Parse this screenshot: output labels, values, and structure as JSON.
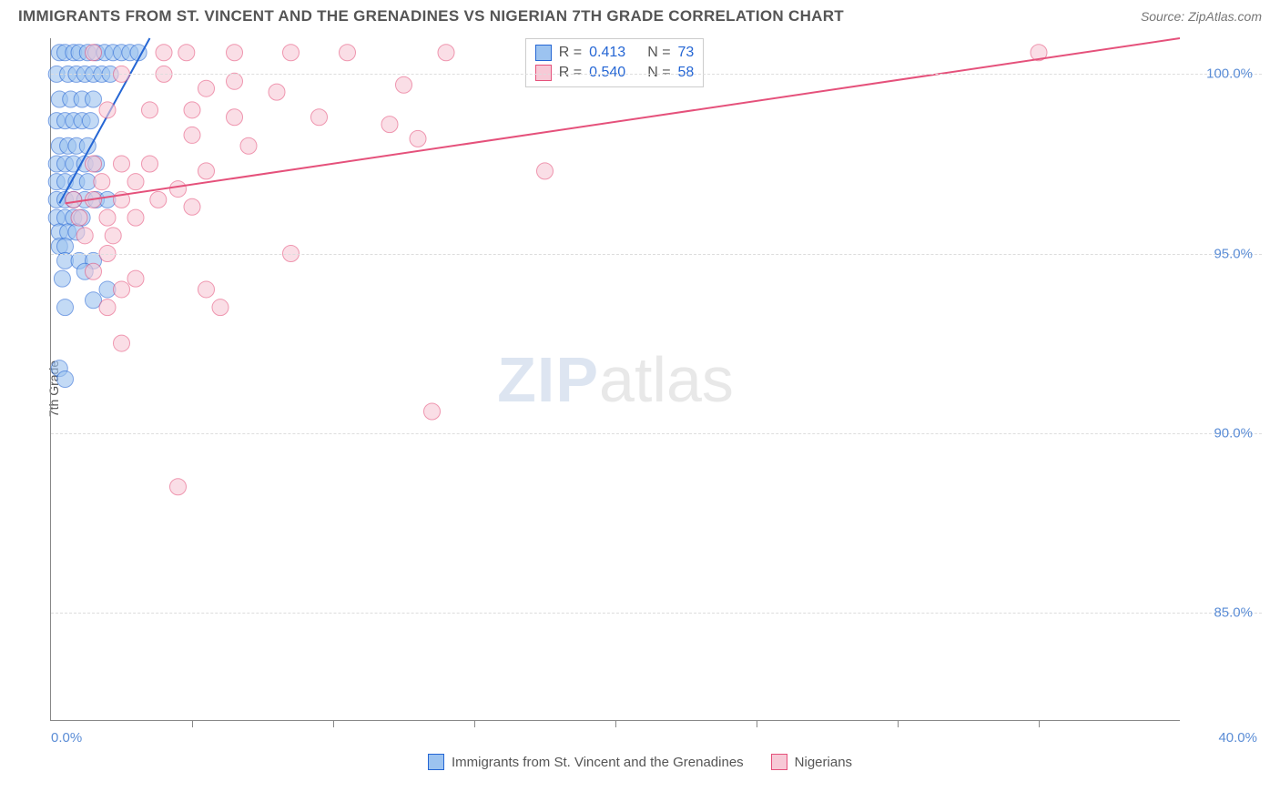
{
  "header": {
    "title": "IMMIGRANTS FROM ST. VINCENT AND THE GRENADINES VS NIGERIAN 7TH GRADE CORRELATION CHART",
    "source": "Source: ZipAtlas.com"
  },
  "chart": {
    "type": "scatter",
    "ylabel": "7th Grade",
    "watermark_zip": "ZIP",
    "watermark_atlas": "atlas",
    "xlim": [
      0,
      40
    ],
    "ylim": [
      82,
      101
    ],
    "xtick_labels": [
      "0.0%",
      "40.0%"
    ],
    "xtick_positions": [
      0,
      40
    ],
    "xtick_minor": [
      5,
      10,
      15,
      20,
      25,
      30,
      35
    ],
    "ytick_labels": [
      "85.0%",
      "90.0%",
      "95.0%",
      "100.0%"
    ],
    "ytick_positions": [
      85,
      90,
      95,
      100
    ],
    "grid_color": "#dddddd",
    "axis_color": "#888888",
    "background_color": "#ffffff",
    "marker_radius": 9,
    "marker_opacity": 0.35,
    "line_width": 2,
    "series": [
      {
        "name": "Immigrants from St. Vincent and the Grenadines",
        "fill": "#9cc3f0",
        "stroke": "#2566d4",
        "r": "0.413",
        "n": "73",
        "trend": {
          "x1": 0.3,
          "y1": 96.4,
          "x2": 3.5,
          "y2": 101
        },
        "points": [
          [
            0.3,
            100.6
          ],
          [
            0.5,
            100.6
          ],
          [
            0.8,
            100.6
          ],
          [
            1.0,
            100.6
          ],
          [
            1.3,
            100.6
          ],
          [
            1.6,
            100.6
          ],
          [
            1.9,
            100.6
          ],
          [
            2.2,
            100.6
          ],
          [
            2.5,
            100.6
          ],
          [
            2.8,
            100.6
          ],
          [
            3.1,
            100.6
          ],
          [
            0.2,
            100.0
          ],
          [
            0.6,
            100.0
          ],
          [
            0.9,
            100.0
          ],
          [
            1.2,
            100.0
          ],
          [
            1.5,
            100.0
          ],
          [
            1.8,
            100.0
          ],
          [
            2.1,
            100.0
          ],
          [
            0.3,
            99.3
          ],
          [
            0.7,
            99.3
          ],
          [
            1.1,
            99.3
          ],
          [
            1.5,
            99.3
          ],
          [
            0.2,
            98.7
          ],
          [
            0.5,
            98.7
          ],
          [
            0.8,
            98.7
          ],
          [
            1.1,
            98.7
          ],
          [
            1.4,
            98.7
          ],
          [
            0.3,
            98.0
          ],
          [
            0.6,
            98.0
          ],
          [
            0.9,
            98.0
          ],
          [
            1.3,
            98.0
          ],
          [
            0.2,
            97.5
          ],
          [
            0.5,
            97.5
          ],
          [
            0.8,
            97.5
          ],
          [
            1.2,
            97.5
          ],
          [
            1.6,
            97.5
          ],
          [
            0.2,
            97.0
          ],
          [
            0.5,
            97.0
          ],
          [
            0.9,
            97.0
          ],
          [
            1.3,
            97.0
          ],
          [
            0.2,
            96.5
          ],
          [
            0.5,
            96.5
          ],
          [
            0.8,
            96.5
          ],
          [
            1.2,
            96.5
          ],
          [
            1.6,
            96.5
          ],
          [
            2.0,
            96.5
          ],
          [
            0.2,
            96.0
          ],
          [
            0.5,
            96.0
          ],
          [
            0.8,
            96.0
          ],
          [
            1.1,
            96.0
          ],
          [
            0.3,
            95.6
          ],
          [
            0.6,
            95.6
          ],
          [
            0.9,
            95.6
          ],
          [
            0.3,
            95.2
          ],
          [
            0.5,
            95.2
          ],
          [
            0.5,
            94.8
          ],
          [
            1.0,
            94.8
          ],
          [
            1.5,
            94.8
          ],
          [
            0.4,
            94.3
          ],
          [
            1.2,
            94.5
          ],
          [
            0.5,
            93.5
          ],
          [
            1.5,
            93.7
          ],
          [
            2.0,
            94.0
          ],
          [
            0.3,
            91.8
          ],
          [
            0.5,
            91.5
          ]
        ]
      },
      {
        "name": "Nigerians",
        "fill": "#f7c9d6",
        "stroke": "#e5517b",
        "r": "0.540",
        "n": "58",
        "trend": {
          "x1": 0.5,
          "y1": 96.4,
          "x2": 40,
          "y2": 101
        },
        "points": [
          [
            1.5,
            100.6
          ],
          [
            4.0,
            100.6
          ],
          [
            4.8,
            100.6
          ],
          [
            6.5,
            100.6
          ],
          [
            8.5,
            100.6
          ],
          [
            10.5,
            100.6
          ],
          [
            14.0,
            100.6
          ],
          [
            35.0,
            100.6
          ],
          [
            2.5,
            100.0
          ],
          [
            4.0,
            100.0
          ],
          [
            5.5,
            99.6
          ],
          [
            6.5,
            99.8
          ],
          [
            8.0,
            99.5
          ],
          [
            12.5,
            99.7
          ],
          [
            2.0,
            99.0
          ],
          [
            3.5,
            99.0
          ],
          [
            5.0,
            99.0
          ],
          [
            6.5,
            98.8
          ],
          [
            9.5,
            98.8
          ],
          [
            12.0,
            98.6
          ],
          [
            5.0,
            98.3
          ],
          [
            7.0,
            98.0
          ],
          [
            13.0,
            98.2
          ],
          [
            1.5,
            97.5
          ],
          [
            2.5,
            97.5
          ],
          [
            3.5,
            97.5
          ],
          [
            5.5,
            97.3
          ],
          [
            1.8,
            97.0
          ],
          [
            3.0,
            97.0
          ],
          [
            4.5,
            96.8
          ],
          [
            0.8,
            96.5
          ],
          [
            1.5,
            96.5
          ],
          [
            2.5,
            96.5
          ],
          [
            3.8,
            96.5
          ],
          [
            5.0,
            96.3
          ],
          [
            1.0,
            96.0
          ],
          [
            2.0,
            96.0
          ],
          [
            3.0,
            96.0
          ],
          [
            1.2,
            95.5
          ],
          [
            2.2,
            95.5
          ],
          [
            2.0,
            95.0
          ],
          [
            8.5,
            95.0
          ],
          [
            1.5,
            94.5
          ],
          [
            3.0,
            94.3
          ],
          [
            2.5,
            94.0
          ],
          [
            5.5,
            94.0
          ],
          [
            2.0,
            93.5
          ],
          [
            6.0,
            93.5
          ],
          [
            2.5,
            92.5
          ],
          [
            13.5,
            90.6
          ],
          [
            17.5,
            97.3
          ],
          [
            4.5,
            88.5
          ]
        ]
      }
    ]
  },
  "legend_top": {
    "r_label": "R =",
    "n_label": "N ="
  },
  "bottom_legend": {
    "item1": "Immigrants from St. Vincent and the Grenadines",
    "item2": "Nigerians"
  }
}
